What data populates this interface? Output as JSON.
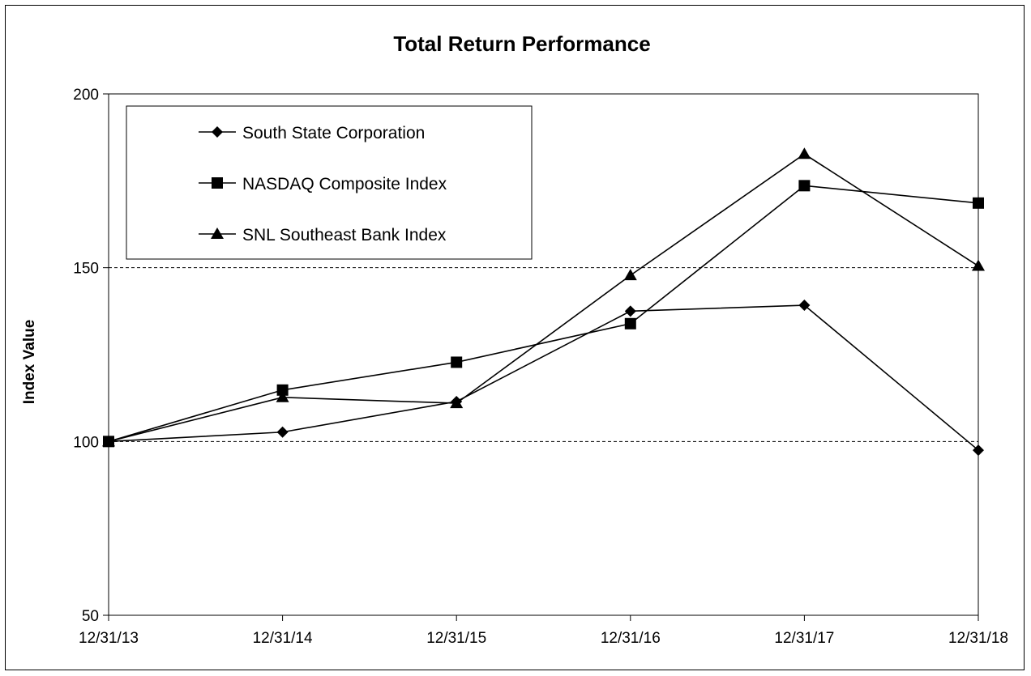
{
  "chart_data": {
    "type": "line",
    "title": "Total Return Performance",
    "xlabel": "",
    "ylabel": "Index Value",
    "categories": [
      "12/31/13",
      "12/31/14",
      "12/31/15",
      "12/31/16",
      "12/31/17",
      "12/31/18"
    ],
    "ylim": [
      50,
      200
    ],
    "yticks": [
      50,
      100,
      150,
      200
    ],
    "grid": "dashed at 100 and 150",
    "legend_position": "top-left",
    "series": [
      {
        "name": "South State Corporation",
        "marker": "diamond",
        "values": [
          100,
          102.7,
          111.5,
          137.5,
          139.2,
          97.5
        ]
      },
      {
        "name": "NASDAQ Composite Index",
        "marker": "square",
        "values": [
          100,
          114.8,
          122.8,
          133.9,
          173.6,
          168.6
        ]
      },
      {
        "name": "SNL Southeast Bank Index",
        "marker": "triangle",
        "values": [
          100,
          112.7,
          111.0,
          147.8,
          182.7,
          150.5
        ]
      }
    ]
  }
}
